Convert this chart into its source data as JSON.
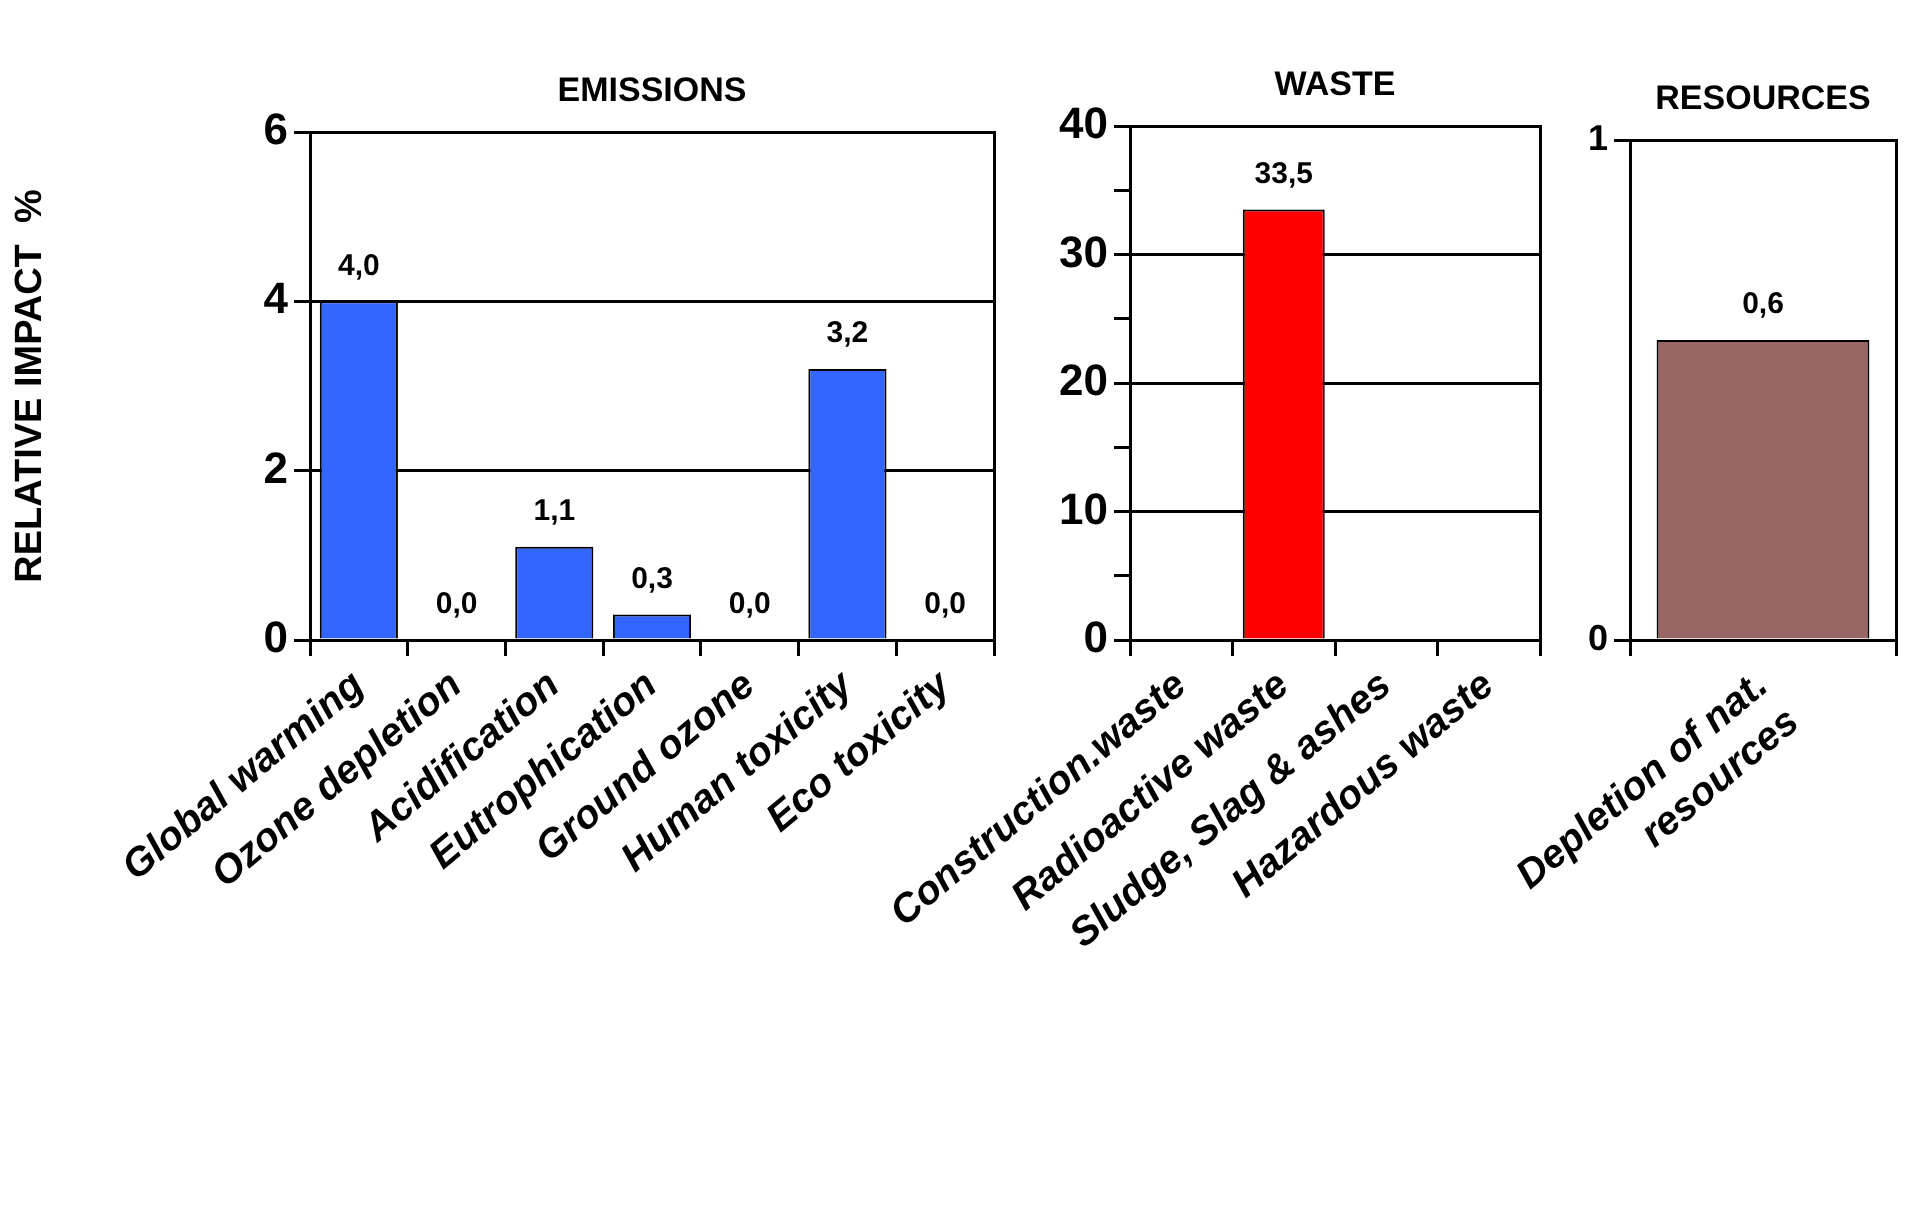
{
  "chart_data": [
    {
      "type": "bar",
      "title": "EMISSIONS",
      "ylabel": "RELATIVE IMPACT  %",
      "categories": [
        "Global warming",
        "Ozone depletion",
        "Acidification",
        "Eutrophication",
        "Ground ozone",
        "Human toxicity",
        "Eco toxicity"
      ],
      "values": [
        4.0,
        0.0,
        1.1,
        0.3,
        0.0,
        3.2,
        0.0
      ],
      "color": "#3366ff",
      "value_labels": [
        "4,0",
        "0,0",
        "1,1",
        "0,3",
        "0,0",
        "3,2",
        "0,0"
      ],
      "ylim": [
        0,
        6
      ],
      "yticks": [
        0,
        2,
        4,
        6
      ],
      "grid": "y"
    },
    {
      "type": "bar",
      "title": "WASTE",
      "categories": [
        "Construction.waste",
        "Radioactive waste",
        "Sludge, Slag & ashes",
        "Hazardous waste"
      ],
      "values": [
        0,
        33.5,
        0,
        0
      ],
      "color": "#ff0000",
      "value_labels": [
        null,
        "33,5",
        null,
        null
      ],
      "ylim": [
        0,
        40
      ],
      "yticks": [
        0,
        {
          "value": 5,
          "label": null
        },
        10,
        {
          "value": 15,
          "label": null
        },
        20,
        {
          "value": 25,
          "label": null
        },
        30,
        {
          "value": 35,
          "label": null
        },
        40
      ],
      "grid": "y"
    },
    {
      "type": "bar",
      "title": "RESOURCES",
      "categories": [
        "Depletion of nat. resources"
      ],
      "values": [
        0.6
      ],
      "color": "#996666",
      "value_labels": [
        "0,6"
      ],
      "ylim": [
        0,
        1
      ],
      "yticks": [
        0,
        1
      ],
      "grid": "y"
    }
  ]
}
